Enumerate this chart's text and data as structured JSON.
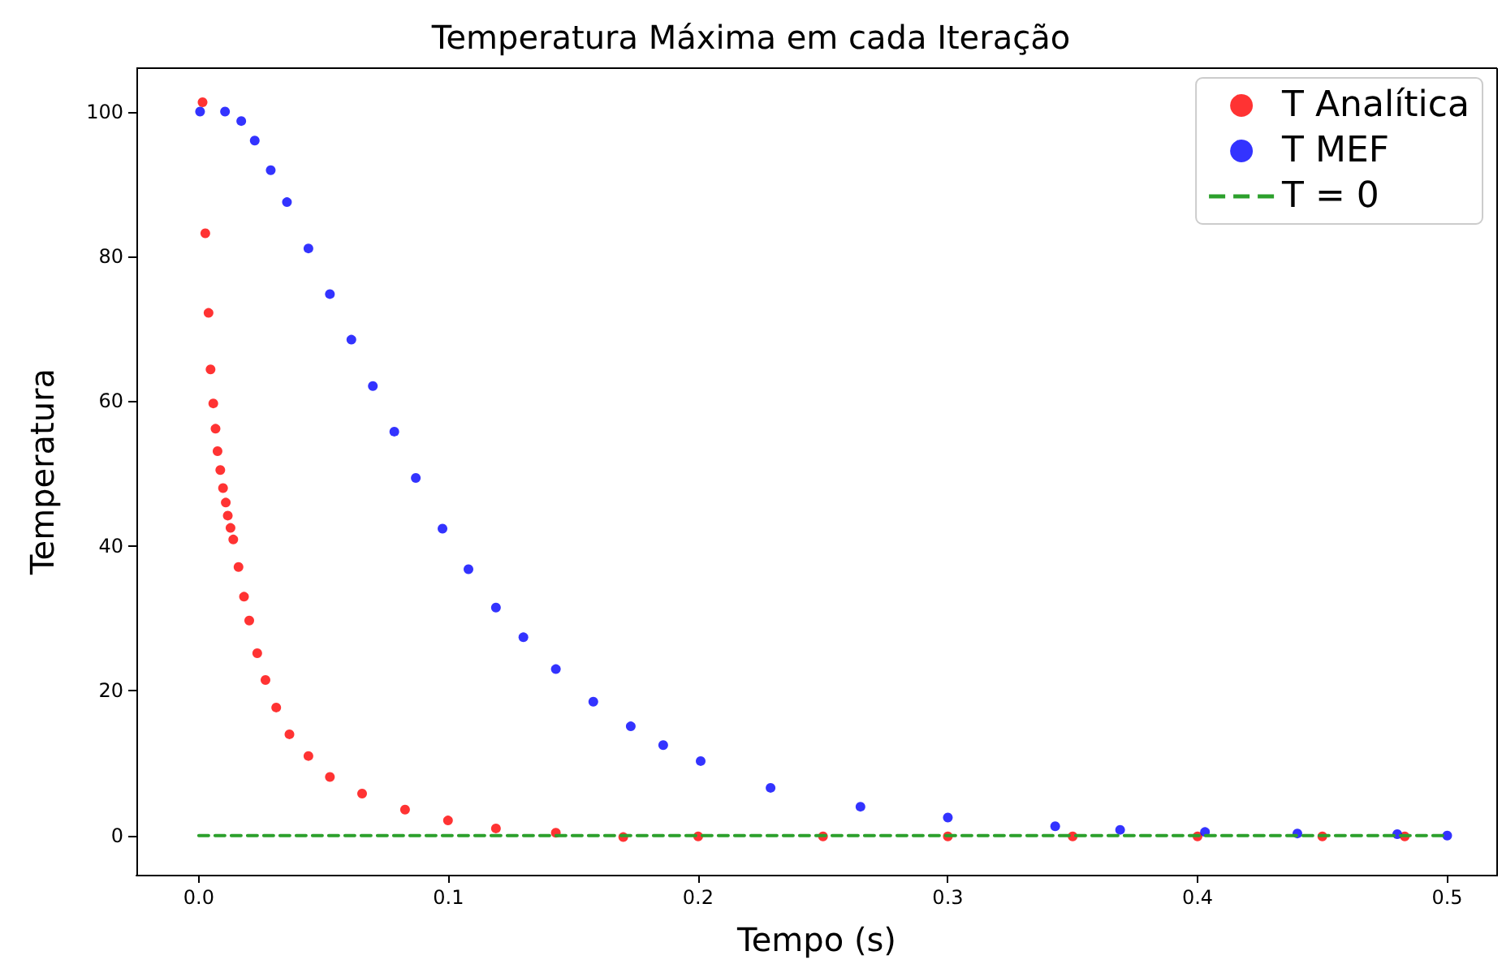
{
  "chart_data": {
    "type": "scatter",
    "title": "Temperatura Máxima em cada Iteração",
    "xlabel": "Tempo (s)",
    "ylabel": "Temperatura",
    "xlim": [
      -0.025,
      0.52
    ],
    "ylim": [
      -5.4,
      106
    ],
    "xticks": [
      {
        "value": 0,
        "label": "0.0"
      },
      {
        "value": 0.1,
        "label": "0.1"
      },
      {
        "value": 0.2,
        "label": "0.2"
      },
      {
        "value": 0.3,
        "label": "0.3"
      },
      {
        "value": 0.4,
        "label": "0.4"
      },
      {
        "value": 0.5,
        "label": "0.5"
      }
    ],
    "yticks": [
      0,
      20,
      40,
      60,
      80,
      100
    ],
    "grid": false,
    "legend": "top right",
    "marker": "circle",
    "series": [
      {
        "name": "T Analítica",
        "color": "#ff0000",
        "x": [
          0.0015,
          0.0026,
          0.0039,
          0.0047,
          0.0058,
          0.0067,
          0.0075,
          0.0086,
          0.0097,
          0.0108,
          0.0116,
          0.0127,
          0.0138,
          0.0159,
          0.0181,
          0.0202,
          0.0234,
          0.0267,
          0.031,
          0.0363,
          0.0439,
          0.0525,
          0.0654,
          0.0826,
          0.0998,
          0.119,
          0.143,
          0.17,
          0.2,
          0.25,
          0.3,
          0.35,
          0.4,
          0.45,
          0.483
        ],
        "values": [
          101.3,
          83.2,
          72.2,
          64.4,
          59.7,
          56.2,
          53.1,
          50.5,
          48,
          46,
          44.2,
          42.5,
          40.9,
          37.1,
          33,
          29.7,
          25.2,
          21.5,
          17.7,
          14,
          11,
          8.1,
          5.8,
          3.6,
          2.1,
          1,
          0.4,
          -0.2,
          -0.1,
          -0.1,
          -0.1,
          -0.1,
          -0.1,
          -0.1,
          -0.1
        ]
      },
      {
        "name": "T MEF",
        "color": "#0000ff",
        "x": [
          0.0005,
          0.0105,
          0.017,
          0.0224,
          0.0288,
          0.0353,
          0.0439,
          0.0525,
          0.0611,
          0.0697,
          0.0783,
          0.0869,
          0.0976,
          0.108,
          0.119,
          0.13,
          0.143,
          0.158,
          0.173,
          0.186,
          0.201,
          0.229,
          0.265,
          0.3,
          0.343,
          0.369,
          0.403,
          0.44,
          0.48,
          0.5
        ],
        "values": [
          100,
          100,
          98.7,
          96,
          91.9,
          87.5,
          81.1,
          74.8,
          68.5,
          62.1,
          55.8,
          49.4,
          42.4,
          36.8,
          31.5,
          27.4,
          23,
          18.5,
          15.1,
          12.5,
          10.3,
          6.6,
          4,
          2.5,
          1.3,
          0.8,
          0.5,
          0.3,
          0.2,
          0
        ]
      },
      {
        "name": "T = 0",
        "type": "line",
        "color": "#2ca02c",
        "line_style": "dashed",
        "marker": "none",
        "x": [
          0,
          0.5
        ],
        "values": [
          0,
          0
        ]
      }
    ]
  }
}
